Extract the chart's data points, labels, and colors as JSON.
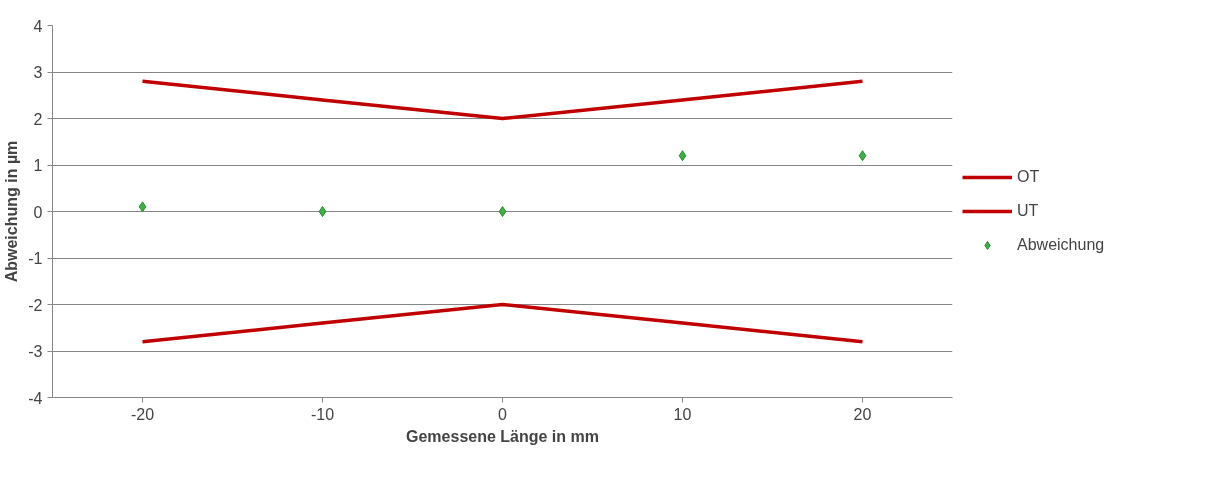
{
  "chart_data": {
    "type": "line",
    "xlabel": "Gemessene Länge in mm",
    "ylabel": "Abweichung in µm",
    "categories": [
      "-20",
      "-10",
      "0",
      "10",
      "20"
    ],
    "series": [
      {
        "name": "OT",
        "color": "#c00000",
        "values": [
          2.8,
          2.4,
          2.0,
          2.4,
          2.8
        ]
      },
      {
        "name": "UT",
        "color": "#c00000",
        "values": [
          -2.8,
          -2.4,
          -2.0,
          -2.4,
          -2.8
        ]
      },
      {
        "name": "Abweichung",
        "type": "scatter",
        "marker": "diamond",
        "color": "#3cb043",
        "values": [
          0.1,
          0,
          0,
          1.2,
          1.2
        ]
      }
    ],
    "ylim": [
      -4,
      4
    ],
    "yticks": [
      -4,
      -3,
      -2,
      -1,
      0,
      1,
      2,
      3,
      4
    ],
    "grid": "y",
    "legend": "right",
    "line_style": "solid"
  }
}
